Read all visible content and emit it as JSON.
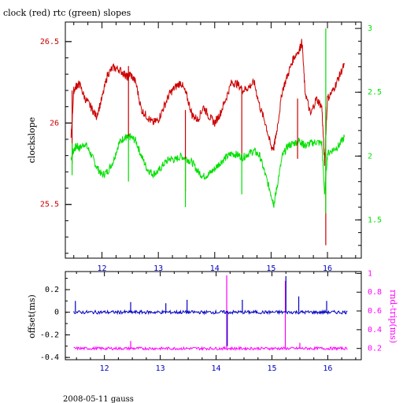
{
  "title": "clock (red) rtc (green) slopes",
  "footer": "2008-05-11 gauss",
  "colors": {
    "clock": "#cc0000",
    "rtc": "#00e000",
    "offset": "#0000c0",
    "rndtrip": "#ff00ff",
    "axis": "#000000",
    "bottom_ticks": "#0000c0"
  },
  "chart_data": [
    {
      "type": "line",
      "xlim": [
        11.35,
        16.6
      ],
      "ylim": [
        25.17,
        26.62
      ],
      "y2lim": [
        1.2,
        3.05
      ],
      "xticks": [
        "12",
        "13",
        "14",
        "15",
        "16"
      ],
      "yticks": [
        "25.5",
        "26",
        "26.5"
      ],
      "y2ticks": [
        "1.5",
        "2",
        "2.5",
        "3"
      ],
      "ylabel": "clockslope",
      "series": [
        {
          "axis": "left",
          "x": [
            11.45,
            11.5,
            11.55,
            11.6,
            11.7,
            11.8,
            11.9,
            12.0,
            12.1,
            12.2,
            12.3,
            12.4,
            12.45,
            12.5,
            12.6,
            12.7,
            12.8,
            12.9,
            13.0,
            13.1,
            13.2,
            13.3,
            13.4,
            13.5,
            13.6,
            13.7,
            13.8,
            13.9,
            14.0,
            14.1,
            14.2,
            14.3,
            14.4,
            14.5,
            14.6,
            14.7,
            14.8,
            14.9,
            15.0,
            15.05,
            15.1,
            15.2,
            15.3,
            15.4,
            15.5,
            15.55,
            15.6,
            15.7,
            15.8,
            15.9,
            15.95,
            16.0,
            16.1,
            16.2,
            16.3
          ],
          "values": [
            25.9,
            26.2,
            26.23,
            26.24,
            26.15,
            26.1,
            26.04,
            26.15,
            26.3,
            26.34,
            26.33,
            26.3,
            26.28,
            26.3,
            26.25,
            26.08,
            26.04,
            26.0,
            26.02,
            26.1,
            26.18,
            26.22,
            26.25,
            26.17,
            26.05,
            26.02,
            26.1,
            26.04,
            26.0,
            26.06,
            26.15,
            26.25,
            26.24,
            26.2,
            26.22,
            26.25,
            26.1,
            26.0,
            25.85,
            25.85,
            25.95,
            26.2,
            26.3,
            26.4,
            26.45,
            26.5,
            26.2,
            26.05,
            26.15,
            26.1,
            25.75,
            26.15,
            26.2,
            26.28,
            26.36
          ]
        },
        {
          "axis": "right",
          "x": [
            11.45,
            11.5,
            11.55,
            11.6,
            11.7,
            11.8,
            11.9,
            12.0,
            12.1,
            12.2,
            12.3,
            12.4,
            12.45,
            12.5,
            12.6,
            12.7,
            12.8,
            12.9,
            13.0,
            13.1,
            13.2,
            13.3,
            13.4,
            13.5,
            13.6,
            13.7,
            13.8,
            13.9,
            14.0,
            14.1,
            14.2,
            14.3,
            14.4,
            14.5,
            14.6,
            14.7,
            14.8,
            14.9,
            15.0,
            15.05,
            15.1,
            15.2,
            15.3,
            15.4,
            15.5,
            15.55,
            15.6,
            15.7,
            15.8,
            15.9,
            15.95,
            16.0,
            16.1,
            16.2,
            16.3
          ],
          "values": [
            1.98,
            2.05,
            2.08,
            2.06,
            2.1,
            2.02,
            1.92,
            1.85,
            1.88,
            1.96,
            2.1,
            2.15,
            2.14,
            2.15,
            2.12,
            2.0,
            1.9,
            1.86,
            1.88,
            1.94,
            1.98,
            1.97,
            2.0,
            1.98,
            1.95,
            1.88,
            1.84,
            1.86,
            1.9,
            1.95,
            1.99,
            2.02,
            2.01,
            1.99,
            2.02,
            2.04,
            2.0,
            1.85,
            1.7,
            1.62,
            1.75,
            2.0,
            2.08,
            2.1,
            2.12,
            2.1,
            2.08,
            2.1,
            2.11,
            2.1,
            1.7,
            2.02,
            2.05,
            2.08,
            2.15
          ]
        }
      ],
      "spikes": [
        {
          "axis": "left",
          "x": 11.47,
          "values": [
            25.75,
            26.2
          ]
        },
        {
          "axis": "left",
          "x": 12.47,
          "values": [
            26.35,
            25.92
          ]
        },
        {
          "axis": "left",
          "x": 13.48,
          "values": [
            26.08,
            25.58
          ]
        },
        {
          "axis": "left",
          "x": 14.48,
          "values": [
            26.22,
            25.78
          ]
        },
        {
          "axis": "left",
          "x": 15.47,
          "values": [
            26.15,
            25.78
          ]
        },
        {
          "axis": "left",
          "x": 15.97,
          "values": [
            26.1,
            25.25
          ]
        },
        {
          "axis": "right",
          "x": 11.47,
          "values": [
            2.1,
            1.85
          ]
        },
        {
          "axis": "right",
          "x": 12.47,
          "values": [
            2.15,
            1.8
          ]
        },
        {
          "axis": "right",
          "x": 13.48,
          "values": [
            1.98,
            1.6
          ]
        },
        {
          "axis": "right",
          "x": 14.48,
          "values": [
            2.02,
            1.7
          ]
        },
        {
          "axis": "right",
          "x": 15.97,
          "values": [
            3.0,
            1.55
          ]
        }
      ]
    },
    {
      "type": "line",
      "xlim": [
        11.3,
        16.6
      ],
      "ylim": [
        -0.42,
        0.36
      ],
      "y2lim": [
        0.08,
        1.02
      ],
      "xticks": [
        "12",
        "13",
        "14",
        "15",
        "16"
      ],
      "yticks": [
        "-0.4",
        "-0.2",
        "0",
        "0.2"
      ],
      "y2ticks": [
        "0.2",
        "0.4",
        "0.6",
        "0.8",
        "1"
      ],
      "ylabel": "offset(ms)",
      "y2label": "rnd-trip(ms)",
      "series": [
        {
          "axis": "left",
          "baseline": 0.0,
          "x_range": [
            11.45,
            16.35
          ],
          "spikes": [
            {
              "x": 11.48,
              "value": 0.1
            },
            {
              "x": 12.47,
              "value": 0.09
            },
            {
              "x": 13.1,
              "value": 0.08
            },
            {
              "x": 13.48,
              "value": 0.11
            },
            {
              "x": 14.2,
              "value": -0.3
            },
            {
              "x": 14.47,
              "value": 0.11
            },
            {
              "x": 15.25,
              "value": 0.32
            },
            {
              "x": 15.48,
              "value": 0.14
            },
            {
              "x": 15.98,
              "value": 0.1
            }
          ]
        },
        {
          "axis": "right",
          "baseline": 0.2,
          "x_range": [
            11.45,
            16.35
          ],
          "spikes": [
            {
              "x": 12.47,
              "value": 0.28
            },
            {
              "x": 14.19,
              "value": 0.98
            },
            {
              "x": 15.24,
              "value": 0.92
            },
            {
              "x": 15.5,
              "value": 0.26
            }
          ]
        }
      ]
    }
  ]
}
